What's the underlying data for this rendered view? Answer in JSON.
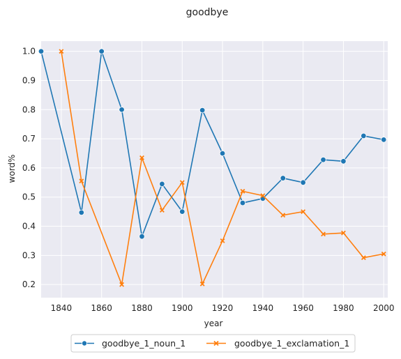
{
  "chart_data": {
    "type": "line",
    "title": "goodbye",
    "xlabel": "year",
    "ylabel": "word%",
    "xlim": [
      1830,
      2002
    ],
    "ylim": [
      0.155,
      1.035
    ],
    "xticks": [
      1840,
      1860,
      1880,
      1900,
      1920,
      1940,
      1960,
      1980,
      2000
    ],
    "yticks": [
      0.2,
      0.3,
      0.4,
      0.5,
      0.6,
      0.7,
      0.8,
      0.9,
      1.0
    ],
    "grid": true,
    "legend_position": "bottom-center",
    "series": [
      {
        "name": "goodbye_1_noun_1",
        "color": "#1f77b4",
        "marker": "circle",
        "x": [
          1830,
          1850,
          1860,
          1870,
          1880,
          1890,
          1900,
          1910,
          1920,
          1930,
          1940,
          1950,
          1960,
          1970,
          1980,
          1990,
          2000
        ],
        "values": [
          1.0,
          0.447,
          1.0,
          0.8,
          0.365,
          0.545,
          0.45,
          0.798,
          0.65,
          0.48,
          0.495,
          0.565,
          0.55,
          0.628,
          0.623,
          0.71,
          0.697
        ]
      },
      {
        "name": "goodbye_1_exclamation_1",
        "color": "#ff7f0e",
        "marker": "x",
        "x": [
          1840,
          1850,
          1870,
          1880,
          1890,
          1900,
          1910,
          1920,
          1930,
          1940,
          1950,
          1960,
          1970,
          1980,
          1990,
          2000
        ],
        "values": [
          1.0,
          0.555,
          0.2,
          0.635,
          0.455,
          0.55,
          0.202,
          0.35,
          0.52,
          0.505,
          0.438,
          0.45,
          0.373,
          0.377,
          0.292,
          0.305
        ]
      }
    ]
  }
}
